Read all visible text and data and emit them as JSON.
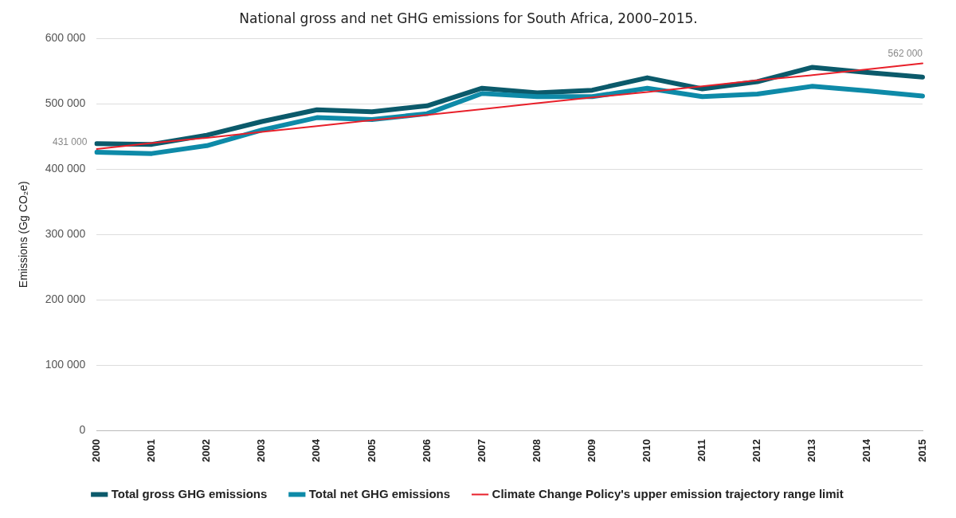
{
  "chart_data": {
    "type": "line",
    "title": "National gross and net GHG emissions for South Africa, 2000–2015.",
    "ylabel": "Emissions (Gg CO₂e)",
    "categories": [
      "2000",
      "2001",
      "2002",
      "2003",
      "2004",
      "2005",
      "2006",
      "2007",
      "2008",
      "2009",
      "2010",
      "2011",
      "2012",
      "2013",
      "2014",
      "2015"
    ],
    "series": [
      {
        "name": "Total gross GHG emissions",
        "color": "#0b5a6b",
        "values": [
          439000,
          438000,
          452000,
          473000,
          491000,
          488000,
          497000,
          524000,
          517000,
          521000,
          540000,
          523000,
          534000,
          556000,
          548000,
          541000
        ]
      },
      {
        "name": "Total net GHG emissions",
        "color": "#0e8aa8",
        "values": [
          426000,
          424000,
          436000,
          460000,
          479000,
          476000,
          485000,
          516000,
          511000,
          511000,
          524000,
          511000,
          515000,
          527000,
          520000,
          512000
        ]
      },
      {
        "name": "Climate Change Policy's upper emission trajectory range limit",
        "color": "#e8202a",
        "values": [
          431000,
          440000,
          448000,
          457000,
          466000,
          475000,
          483000,
          492000,
          501000,
          510000,
          518000,
          527000,
          536000,
          544000,
          553000,
          562000
        ]
      }
    ],
    "ylim": [
      0,
      600000
    ],
    "yticks": [
      {
        "value": 0,
        "label": "0"
      },
      {
        "value": 100000,
        "label": "100 000"
      },
      {
        "value": 200000,
        "label": "200 000"
      },
      {
        "value": 300000,
        "label": "300 000"
      },
      {
        "value": 400000,
        "label": "400 000"
      },
      {
        "value": 500000,
        "label": "500 000"
      },
      {
        "value": 600000,
        "label": "600 000"
      }
    ],
    "annotations": [
      {
        "text": "431 000",
        "x": "2000",
        "y": 431000
      },
      {
        "text": "562 000",
        "x": "2015",
        "y": 562000
      }
    ],
    "grid": "y",
    "legend": "bottom",
    "marker": "none",
    "line_style": "solid"
  }
}
